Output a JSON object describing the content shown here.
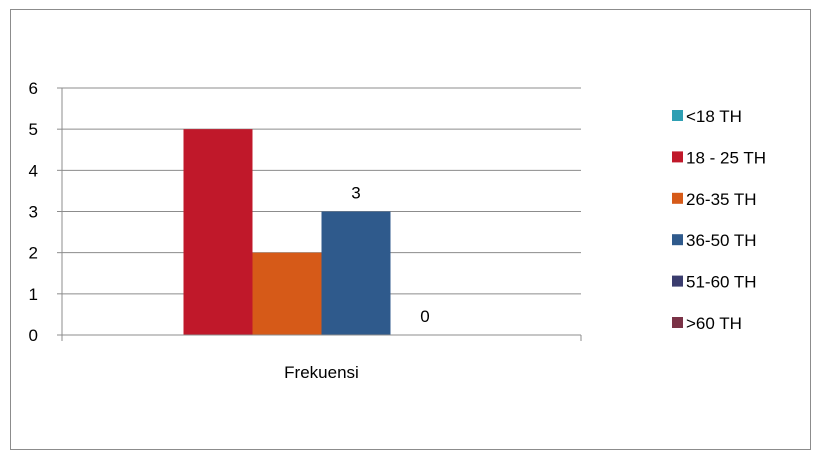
{
  "chart_data": {
    "type": "bar",
    "categories": [
      "Frekuensi"
    ],
    "series": [
      {
        "name": "<18 TH",
        "values": [
          0
        ],
        "color": "#2E9FB3"
      },
      {
        "name": "18 - 25 TH",
        "values": [
          5
        ],
        "color": "#C0182A"
      },
      {
        "name": "26-35 TH",
        "values": [
          2
        ],
        "color": "#D65A18"
      },
      {
        "name": "36-50 TH",
        "values": [
          3
        ],
        "color": "#2F5A8C"
      },
      {
        "name": "51-60 TH",
        "values": [
          0
        ],
        "color": "#3A3C6E"
      },
      {
        "name": ">60 TH",
        "values": [
          0
        ],
        "color": "#7A3246"
      }
    ],
    "y_ticks": [
      "0",
      "1",
      "2",
      "3",
      "4",
      "5",
      "6"
    ],
    "ylim": [
      0,
      6
    ],
    "data_labels": [
      {
        "series": "36-50 TH",
        "text": "3"
      },
      {
        "series": "51-60 TH",
        "text": "0"
      }
    ],
    "grid": true,
    "legend_position": "right",
    "gridline_color": "#8c8c8c",
    "axis_color": "#8c8c8c"
  }
}
